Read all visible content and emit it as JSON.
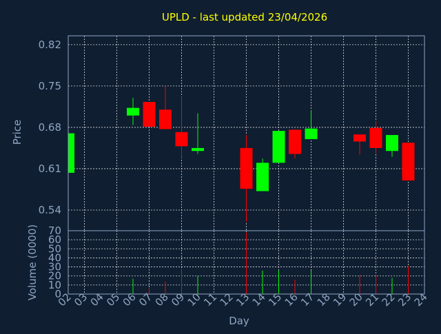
{
  "chart_data": {
    "type": "candlestick",
    "title": "UPLD - last updated 23/04/2026",
    "xlabel": "Day",
    "price_axis": {
      "label": "Price",
      "ticks": [
        0.54,
        0.61,
        0.68,
        0.75,
        0.82
      ],
      "range": [
        0.505,
        0.835
      ]
    },
    "volume_axis": {
      "label": "Volume (0000)",
      "ticks": [
        0,
        10,
        20,
        30,
        40,
        50,
        60,
        70
      ],
      "range": [
        0,
        70
      ]
    },
    "x_ticks": [
      "02",
      "03",
      "04",
      "05",
      "06",
      "07",
      "08",
      "09",
      "10",
      "11",
      "12",
      "13",
      "14",
      "15",
      "16",
      "17",
      "18",
      "19",
      "20",
      "21",
      "22",
      "23",
      "24"
    ],
    "grid": true,
    "colors": {
      "up": "#00ff00",
      "down": "#ff0000",
      "title": "#ffff00",
      "axis": "#8fa6c2",
      "background": "#0f1e31"
    },
    "candles": [
      {
        "day": "02",
        "open": 0.603,
        "close": 0.67,
        "high": 0.67,
        "low": 0.603,
        "volume": 0
      },
      {
        "day": "06",
        "open": 0.7,
        "close": 0.713,
        "high": 0.73,
        "low": 0.684,
        "volume": 17
      },
      {
        "day": "07",
        "open": 0.723,
        "close": 0.681,
        "high": 0.723,
        "low": 0.681,
        "volume": 7
      },
      {
        "day": "08",
        "open": 0.71,
        "close": 0.677,
        "high": 0.75,
        "low": 0.677,
        "volume": 14
      },
      {
        "day": "09",
        "open": 0.672,
        "close": 0.648,
        "high": 0.732,
        "low": 0.628,
        "volume": 28
      },
      {
        "day": "10",
        "open": 0.64,
        "close": 0.645,
        "high": 0.704,
        "low": 0.635,
        "volume": 20
      },
      {
        "day": "13",
        "open": 0.645,
        "close": 0.576,
        "high": 0.667,
        "low": 0.52,
        "volume": 68
      },
      {
        "day": "14",
        "open": 0.572,
        "close": 0.62,
        "high": 0.627,
        "low": 0.572,
        "volume": 26
      },
      {
        "day": "15",
        "open": 0.62,
        "close": 0.674,
        "high": 0.674,
        "low": 0.62,
        "volume": 26
      },
      {
        "day": "16",
        "open": 0.676,
        "close": 0.635,
        "high": 0.676,
        "low": 0.627,
        "volume": 16
      },
      {
        "day": "17",
        "open": 0.66,
        "close": 0.678,
        "high": 0.708,
        "low": 0.66,
        "volume": 26
      },
      {
        "day": "20",
        "open": 0.668,
        "close": 0.656,
        "high": 0.668,
        "low": 0.634,
        "volume": 21
      },
      {
        "day": "21",
        "open": 0.679,
        "close": 0.645,
        "high": 0.69,
        "low": 0.635,
        "volume": 21
      },
      {
        "day": "22",
        "open": 0.64,
        "close": 0.667,
        "high": 0.667,
        "low": 0.63,
        "volume": 18
      },
      {
        "day": "23",
        "open": 0.654,
        "close": 0.59,
        "high": 0.654,
        "low": 0.59,
        "volume": 31
      }
    ]
  }
}
